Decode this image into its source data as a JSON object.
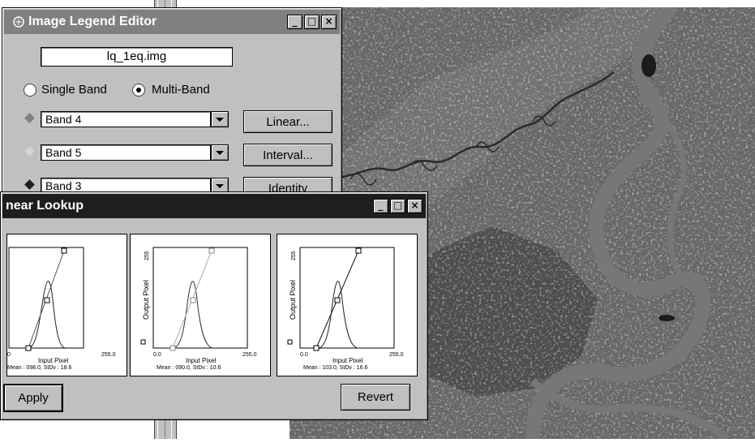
{
  "legend_editor": {
    "title": "Image Legend Editor",
    "filename": "lq_1eq.img",
    "single_band_label": "Single Band",
    "multi_band_label": "Multi-Band",
    "selected_mode": "Multi-Band",
    "bands": [
      {
        "value": "Band 4",
        "diamond_color": "#808080"
      },
      {
        "value": "Band 5",
        "diamond_color": "#d4d4d4"
      },
      {
        "value": "Band 3",
        "diamond_color": "#202020"
      }
    ],
    "buttons": {
      "linear": "Linear...",
      "interval": "Interval...",
      "identity": "Identity"
    }
  },
  "lookup": {
    "title": "near Lookup",
    "plots": [
      {
        "y_label": "",
        "y_tick": "",
        "x_tick_min": "0",
        "x_tick_max": "255.0",
        "x_label": "Input Pixel",
        "stats": "Mean : 098.0, StDv : 18.6"
      },
      {
        "y_label": "Output Pixel",
        "y_tick": "255",
        "x_tick_min": "0.0",
        "x_tick_max": "255.0",
        "x_label": "Input Pixel",
        "stats": "Mean : 090.0, StDv : 10.6"
      },
      {
        "y_label": "Output Pixel",
        "y_tick": "255",
        "x_tick_min": "0.0",
        "x_tick_max": "255.0",
        "x_label": "Input Pixel",
        "stats": "Mean : 103.0, StDv : 16.6"
      }
    ],
    "apply_label": "Apply",
    "revert_label": "Revert"
  }
}
